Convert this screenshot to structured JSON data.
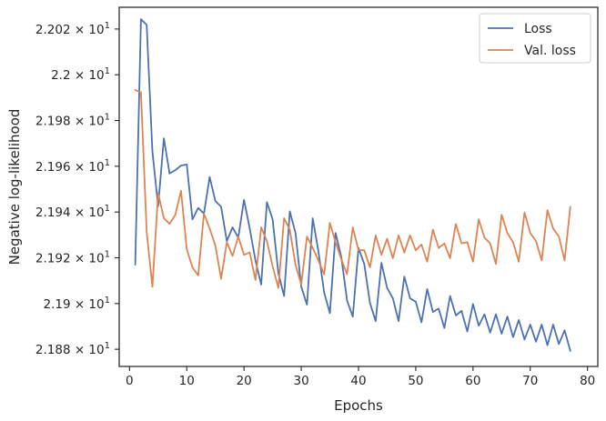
{
  "chart_data": {
    "type": "line",
    "xlabel": "Epochs",
    "ylabel": "Negative log-likelihood",
    "xlim": [
      -1.8,
      81.8
    ],
    "ylim": [
      21.8725,
      22.0295
    ],
    "xticks": [
      0,
      10,
      20,
      30,
      40,
      50,
      60,
      70,
      80
    ],
    "xtick_labels": [
      "0",
      "10",
      "20",
      "30",
      "40",
      "50",
      "60",
      "70",
      "80"
    ],
    "yticks": [
      21.88,
      21.9,
      21.92,
      21.94,
      21.96,
      21.98,
      22.0,
      22.02
    ],
    "ytick_labels": [
      {
        "mantissa": "2.188",
        "exp": "1"
      },
      {
        "mantissa": "2.19",
        "exp": "1"
      },
      {
        "mantissa": "2.192",
        "exp": "1"
      },
      {
        "mantissa": "2.194",
        "exp": "1"
      },
      {
        "mantissa": "2.196",
        "exp": "1"
      },
      {
        "mantissa": "2.198",
        "exp": "1"
      },
      {
        "mantissa": "2.2",
        "exp": "1"
      },
      {
        "mantissa": "2.202",
        "exp": "1"
      }
    ],
    "times_symbol": "×",
    "base": "10",
    "grid": false,
    "legend_position": "top-right",
    "x": [
      1,
      2,
      3,
      4,
      5,
      6,
      7,
      8,
      9,
      10,
      11,
      12,
      13,
      14,
      15,
      16,
      17,
      18,
      19,
      20,
      21,
      22,
      23,
      24,
      25,
      26,
      27,
      28,
      29,
      30,
      31,
      32,
      33,
      34,
      35,
      36,
      37,
      38,
      39,
      40,
      41,
      42,
      43,
      44,
      45,
      46,
      47,
      48,
      49,
      50,
      51,
      52,
      53,
      54,
      55,
      56,
      57,
      58,
      59,
      60,
      61,
      62,
      63,
      64,
      65,
      66,
      67,
      68,
      69,
      70,
      71,
      72,
      73,
      74,
      75,
      76,
      77
    ],
    "series": [
      {
        "name": "Loss",
        "color": "#4c72b0",
        "values": [
          21.917,
          22.0243,
          22.0218,
          21.9665,
          21.9425,
          21.9722,
          21.9568,
          21.9583,
          21.9603,
          21.9608,
          21.9368,
          21.9418,
          21.9393,
          21.9553,
          21.9448,
          21.9423,
          21.9273,
          21.9333,
          21.9288,
          21.9453,
          21.9328,
          21.9188,
          21.9083,
          21.9443,
          21.9368,
          21.9133,
          21.9033,
          21.9403,
          21.9308,
          21.9073,
          21.8995,
          21.9373,
          21.9228,
          21.9048,
          21.8958,
          21.9308,
          21.9203,
          21.9013,
          21.8943,
          21.9243,
          21.9173,
          21.9003,
          21.8923,
          21.9178,
          21.9068,
          21.9023,
          21.8923,
          21.9118,
          21.9023,
          21.9008,
          21.8918,
          21.9063,
          21.8963,
          21.8978,
          21.8893,
          21.9033,
          21.8948,
          21.8968,
          21.8878,
          21.8998,
          21.8903,
          21.8953,
          21.8873,
          21.8953,
          21.8868,
          21.8943,
          21.8853,
          21.8928,
          21.8843,
          21.8908,
          21.8833,
          21.8908,
          21.8818,
          21.8908,
          21.8823,
          21.8883,
          21.8793
        ]
      },
      {
        "name": "Val. loss",
        "color": "#dd8452",
        "values": [
          21.9933,
          21.9923,
          21.9313,
          21.9073,
          21.9483,
          21.9373,
          21.9348,
          21.9388,
          21.9493,
          21.9238,
          21.9158,
          21.9123,
          21.9393,
          21.9328,
          21.9253,
          21.9108,
          21.9268,
          21.9208,
          21.9293,
          21.9213,
          21.9223,
          21.9103,
          21.9333,
          21.9273,
          21.9163,
          21.9068,
          21.9373,
          21.9323,
          21.9168,
          21.9083,
          21.9293,
          21.9243,
          21.9188,
          21.9128,
          21.9353,
          21.9268,
          21.9193,
          21.9128,
          21.9333,
          21.9233,
          21.9233,
          21.9158,
          21.9298,
          21.9213,
          21.9283,
          21.9198,
          21.9298,
          21.9223,
          21.9298,
          21.9233,
          21.9258,
          21.9183,
          21.9323,
          21.9243,
          21.9263,
          21.9198,
          21.9348,
          21.9263,
          21.9268,
          21.9183,
          21.9368,
          21.9288,
          21.9263,
          21.9173,
          21.9388,
          21.9308,
          21.9268,
          21.9183,
          21.9398,
          21.9308,
          21.9273,
          21.9188,
          21.9408,
          21.9328,
          21.9293,
          21.9188,
          21.9423
        ]
      }
    ]
  }
}
